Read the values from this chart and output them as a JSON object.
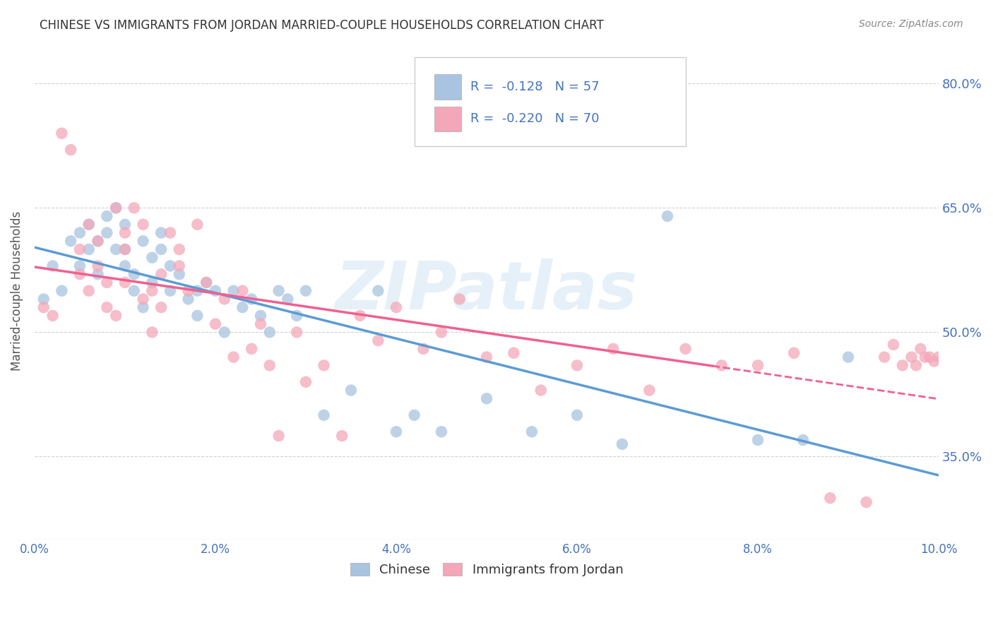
{
  "title": "CHINESE VS IMMIGRANTS FROM JORDAN MARRIED-COUPLE HOUSEHOLDS CORRELATION CHART",
  "source": "Source: ZipAtlas.com",
  "ylabel": "Married-couple Households",
  "watermark": "ZIPatlas",
  "legend_label1": "Chinese",
  "legend_label2": "Immigrants from Jordan",
  "r1": "-0.128",
  "n1": "57",
  "r2": "-0.220",
  "n2": "70",
  "color1": "#a8c4e0",
  "color2": "#f4a7b9",
  "trendline1_color": "#5b9bd5",
  "trendline2_color": "#f06090",
  "xmin": 0.0,
  "xmax": 10.0,
  "ymin": 25.0,
  "ymax": 85.0,
  "yticks": [
    35.0,
    50.0,
    65.0,
    80.0
  ],
  "ytick_labels": [
    "35.0%",
    "50.0%",
    "65.0%",
    "80.0%"
  ],
  "xticks": [
    0.0,
    2.0,
    4.0,
    6.0,
    8.0,
    10.0
  ],
  "xtick_labels": [
    "0.0%",
    "2.0%",
    "4.0%",
    "6.0%",
    "8.0%",
    "10.0%"
  ],
  "chinese_x": [
    0.1,
    0.2,
    0.3,
    0.4,
    0.5,
    0.5,
    0.6,
    0.6,
    0.7,
    0.7,
    0.8,
    0.8,
    0.9,
    0.9,
    1.0,
    1.0,
    1.0,
    1.1,
    1.1,
    1.2,
    1.2,
    1.3,
    1.3,
    1.4,
    1.4,
    1.5,
    1.5,
    1.6,
    1.7,
    1.8,
    1.8,
    1.9,
    2.0,
    2.1,
    2.2,
    2.3,
    2.4,
    2.5,
    2.6,
    2.7,
    2.8,
    2.9,
    3.0,
    3.2,
    3.5,
    3.8,
    4.0,
    4.2,
    4.5,
    5.0,
    5.5,
    6.0,
    6.5,
    7.0,
    8.0,
    8.5,
    9.0
  ],
  "chinese_y": [
    54.0,
    58.0,
    55.0,
    61.0,
    58.0,
    62.0,
    60.0,
    63.0,
    57.0,
    61.0,
    64.0,
    62.0,
    60.0,
    65.0,
    63.0,
    58.0,
    60.0,
    55.0,
    57.0,
    53.0,
    61.0,
    59.0,
    56.0,
    62.0,
    60.0,
    55.0,
    58.0,
    57.0,
    54.0,
    52.0,
    55.0,
    56.0,
    55.0,
    50.0,
    55.0,
    53.0,
    54.0,
    52.0,
    50.0,
    55.0,
    54.0,
    52.0,
    55.0,
    40.0,
    43.0,
    55.0,
    38.0,
    40.0,
    38.0,
    42.0,
    38.0,
    40.0,
    36.5,
    64.0,
    37.0,
    37.0,
    47.0
  ],
  "jordan_x": [
    0.1,
    0.2,
    0.3,
    0.4,
    0.5,
    0.5,
    0.6,
    0.6,
    0.7,
    0.7,
    0.8,
    0.8,
    0.9,
    0.9,
    1.0,
    1.0,
    1.0,
    1.1,
    1.2,
    1.2,
    1.3,
    1.3,
    1.4,
    1.4,
    1.5,
    1.6,
    1.6,
    1.7,
    1.8,
    1.9,
    2.0,
    2.1,
    2.2,
    2.3,
    2.4,
    2.5,
    2.6,
    2.7,
    2.9,
    3.0,
    3.2,
    3.4,
    3.6,
    3.8,
    4.0,
    4.3,
    4.5,
    4.7,
    5.0,
    5.3,
    5.6,
    6.0,
    6.4,
    6.8,
    7.2,
    7.6,
    8.0,
    8.4,
    8.8,
    9.2,
    9.4,
    9.5,
    9.6,
    9.7,
    9.75,
    9.8,
    9.85,
    9.9,
    9.95,
    10.0
  ],
  "jordan_y": [
    53.0,
    52.0,
    74.0,
    72.0,
    60.0,
    57.0,
    63.0,
    55.0,
    58.0,
    61.0,
    53.0,
    56.0,
    52.0,
    65.0,
    62.0,
    60.0,
    56.0,
    65.0,
    63.0,
    54.0,
    50.0,
    55.0,
    57.0,
    53.0,
    62.0,
    58.0,
    60.0,
    55.0,
    63.0,
    56.0,
    51.0,
    54.0,
    47.0,
    55.0,
    48.0,
    51.0,
    46.0,
    37.5,
    50.0,
    44.0,
    46.0,
    37.5,
    52.0,
    49.0,
    53.0,
    48.0,
    50.0,
    54.0,
    47.0,
    47.5,
    43.0,
    46.0,
    48.0,
    43.0,
    48.0,
    46.0,
    46.0,
    47.5,
    30.0,
    29.5,
    47.0,
    48.5,
    46.0,
    47.0,
    46.0,
    48.0,
    47.0,
    47.0,
    46.5,
    47.0
  ]
}
